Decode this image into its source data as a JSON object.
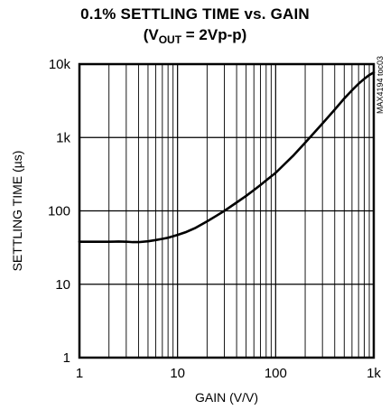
{
  "chart_data": {
    "type": "line",
    "title": "0.1% SETTLING TIME vs. GAIN",
    "subtitle": {
      "open": "(V",
      "sub": "OUT",
      "close": " = 2Vp-p)"
    },
    "xlabel": "GAIN (V/V)",
    "ylabel": "SETTLING TIME (µs)",
    "figure_id": "MAX4194 toc03",
    "x_scale": "log",
    "y_scale": "log",
    "xlim": [
      1,
      1000
    ],
    "ylim": [
      1,
      10000
    ],
    "x_ticks": [
      {
        "value": 1,
        "label": "1"
      },
      {
        "value": 10,
        "label": "10"
      },
      {
        "value": 100,
        "label": "100"
      },
      {
        "value": 1000,
        "label": "1k"
      }
    ],
    "y_ticks": [
      {
        "value": 1,
        "label": "1"
      },
      {
        "value": 10,
        "label": "10"
      },
      {
        "value": 100,
        "label": "100"
      },
      {
        "value": 1000,
        "label": "1k"
      },
      {
        "value": 10000,
        "label": "10k"
      }
    ],
    "grid": true,
    "series": [
      {
        "x": [
          1,
          1.5,
          2,
          2.5,
          3,
          3.5,
          4,
          5,
          6,
          7,
          8,
          10,
          12,
          15,
          20,
          25,
          30,
          40,
          50,
          60,
          70,
          80,
          100,
          150,
          200,
          300,
          400,
          500,
          600,
          700,
          800,
          900,
          1000
        ],
        "y": [
          38,
          38,
          38,
          38.2,
          38,
          37.5,
          37.5,
          38.5,
          40,
          41.5,
          43,
          47,
          51,
          58,
          72,
          86,
          100,
          130,
          160,
          192,
          225,
          260,
          330,
          560,
          850,
          1550,
          2400,
          3400,
          4400,
          5400,
          6300,
          7100,
          7700
        ]
      }
    ]
  }
}
